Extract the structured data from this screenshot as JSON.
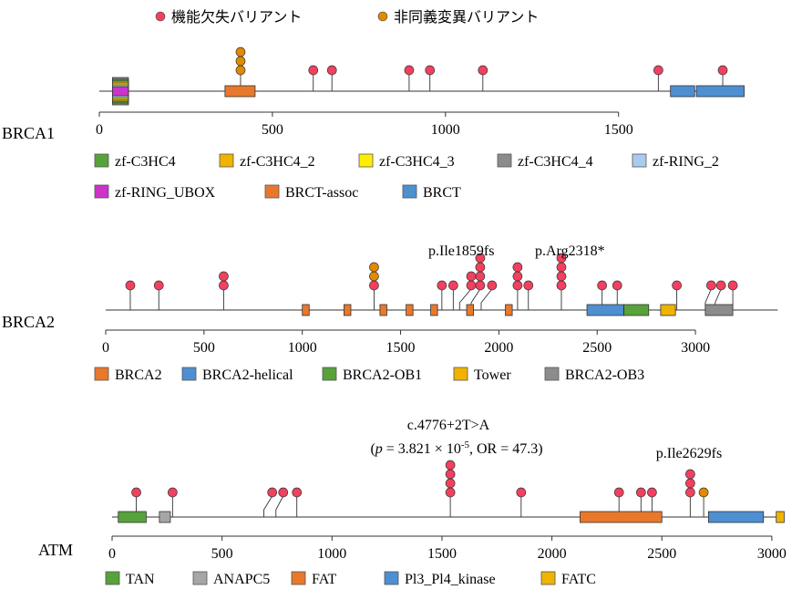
{
  "legend_top": {
    "lof": {
      "label": "機能欠失バリアント",
      "color": "#f2405f"
    },
    "missense": {
      "label": "非同義変異バリアント",
      "color": "#e08a00"
    }
  },
  "genes": [
    {
      "id": "brca1",
      "name": "BRCA1",
      "length": 1863,
      "axis_max": 1500,
      "ticks": [
        0,
        500,
        1000,
        1500
      ],
      "domains": [
        {
          "name": "zf-C3HC4_4",
          "start": 38,
          "end": 84,
          "color": "#8c8c8c"
        },
        {
          "name": "zf-C3HC4",
          "start": 38,
          "end": 84,
          "color": "#58a23c"
        },
        {
          "name": "zf-C3HC4_2",
          "start": 38,
          "end": 84,
          "color": "#f0b400"
        },
        {
          "name": "zf-C3HC4_3",
          "start": 38,
          "end": 84,
          "color": "#ffee00"
        },
        {
          "name": "zf-RING_2",
          "start": 38,
          "end": 84,
          "color": "#a9cbee"
        },
        {
          "name": "zf-RING_UBOX",
          "start": 38,
          "end": 84,
          "color": "#cc33cc"
        },
        {
          "name": "BRCT-assoc",
          "start": 363,
          "end": 450,
          "color": "#e8782c"
        },
        {
          "name": "BRCT",
          "start": 1650,
          "end": 1720,
          "color": "#4d8fd1"
        },
        {
          "name": "BRCT",
          "start": 1725,
          "end": 1863,
          "color": "#4d8fd1"
        }
      ],
      "variants": [
        {
          "pos": 408,
          "count": 3,
          "type": "missense"
        },
        {
          "pos": 618,
          "count": 1,
          "type": "lof"
        },
        {
          "pos": 672,
          "count": 1,
          "type": "lof"
        },
        {
          "pos": 895,
          "count": 1,
          "type": "lof"
        },
        {
          "pos": 955,
          "count": 1,
          "type": "lof"
        },
        {
          "pos": 1108,
          "count": 1,
          "type": "lof"
        },
        {
          "pos": 1615,
          "count": 1,
          "type": "lof"
        },
        {
          "pos": 1801,
          "count": 1,
          "type": "lof"
        }
      ],
      "legend": [
        {
          "name": "zf-C3HC4",
          "color": "#58a23c"
        },
        {
          "name": "zf-C3HC4_2",
          "color": "#f0b400"
        },
        {
          "name": "zf-C3HC4_3",
          "color": "#ffee00"
        },
        {
          "name": "zf-C3HC4_4",
          "color": "#8c8c8c"
        },
        {
          "name": "zf-RING_2",
          "color": "#a9cbee"
        },
        {
          "name": "zf-RING_UBOX",
          "color": "#cc33cc"
        },
        {
          "name": "BRCT-assoc",
          "color": "#e8782c"
        },
        {
          "name": "BRCT",
          "color": "#4d8fd1"
        }
      ],
      "annotations": []
    },
    {
      "id": "brca2",
      "name": "BRCA2",
      "length": 3418,
      "axis_max": 3000,
      "ticks": [
        0,
        500,
        1000,
        1500,
        2000,
        2500,
        3000
      ],
      "domains": [
        {
          "name": "BRCA2",
          "start": 1000,
          "end": 1035,
          "color": "#e8782c"
        },
        {
          "name": "BRCA2",
          "start": 1212,
          "end": 1247,
          "color": "#e8782c"
        },
        {
          "name": "BRCA2",
          "start": 1395,
          "end": 1430,
          "color": "#e8782c"
        },
        {
          "name": "BRCA2",
          "start": 1528,
          "end": 1563,
          "color": "#e8782c"
        },
        {
          "name": "BRCA2",
          "start": 1653,
          "end": 1688,
          "color": "#e8782c"
        },
        {
          "name": "BRCA2",
          "start": 1836,
          "end": 1871,
          "color": "#e8782c"
        },
        {
          "name": "BRCA2",
          "start": 2033,
          "end": 2068,
          "color": "#e8782c"
        },
        {
          "name": "BRCA2-helical",
          "start": 2448,
          "end": 2635,
          "color": "#4d8fd1"
        },
        {
          "name": "BRCA2-OB1",
          "start": 2636,
          "end": 2762,
          "color": "#58a23c"
        },
        {
          "name": "Tower",
          "start": 2823,
          "end": 2898,
          "color": "#f0b400"
        },
        {
          "name": "BRCA2-OB3",
          "start": 3050,
          "end": 3190,
          "color": "#8c8c8c"
        }
      ],
      "variants": [
        {
          "pos": 125,
          "count": 1,
          "type": "lof"
        },
        {
          "pos": 270,
          "count": 1,
          "type": "lof"
        },
        {
          "pos": 600,
          "count": 2,
          "type": "lof"
        },
        {
          "pos": 1365,
          "count": 2,
          "type": "missense",
          "stemTopCount": 1
        },
        {
          "pos": 1365,
          "count": 1,
          "type": "lof",
          "stack": 0
        },
        {
          "pos": 1710,
          "count": 1,
          "type": "lof"
        },
        {
          "pos": 1768,
          "count": 1,
          "type": "lof"
        },
        {
          "pos": 1859,
          "count": 2,
          "type": "lof",
          "bentFrom": 1800
        },
        {
          "pos": 1905,
          "count": 4,
          "type": "lof",
          "bentFrom": 1859
        },
        {
          "pos": 1965,
          "count": 1,
          "type": "lof",
          "bentFrom": 1910
        },
        {
          "pos": 2095,
          "count": 3,
          "type": "lof"
        },
        {
          "pos": 2150,
          "count": 1,
          "type": "lof"
        },
        {
          "pos": 2318,
          "count": 4,
          "type": "lof"
        },
        {
          "pos": 2525,
          "count": 1,
          "type": "lof"
        },
        {
          "pos": 2602,
          "count": 1,
          "type": "lof"
        },
        {
          "pos": 2905,
          "count": 1,
          "type": "lof"
        },
        {
          "pos": 3080,
          "count": 1,
          "type": "lof",
          "bentFrom": 3050
        },
        {
          "pos": 3130,
          "count": 1,
          "type": "lof",
          "bentFrom": 3100
        },
        {
          "pos": 3190,
          "count": 1,
          "type": "lof"
        }
      ],
      "legend": [
        {
          "name": "BRCA2",
          "color": "#e8782c"
        },
        {
          "name": "BRCA2-helical",
          "color": "#4d8fd1"
        },
        {
          "name": "BRCA2-OB1",
          "color": "#58a23c"
        },
        {
          "name": "Tower",
          "color": "#f0b400"
        },
        {
          "name": "BRCA2-OB3",
          "color": "#8c8c8c"
        }
      ],
      "annotations": [
        {
          "text": "p.Ile1859fs",
          "pos": 1859
        },
        {
          "text": "p.Arg2318*",
          "pos": 2318
        }
      ]
    },
    {
      "id": "atm",
      "name": "ATM",
      "length": 3056,
      "axis_max": 3000,
      "ticks": [
        0,
        500,
        1000,
        1500,
        2000,
        2500,
        3000
      ],
      "domains": [
        {
          "name": "TAN",
          "start": 28,
          "end": 155,
          "color": "#58a23c"
        },
        {
          "name": "ANAPC5",
          "start": 215,
          "end": 265,
          "color": "#a6a6a6"
        },
        {
          "name": "FAT",
          "start": 2128,
          "end": 2500,
          "color": "#e8782c"
        },
        {
          "name": "PI3_PI4_kinase",
          "start": 2712,
          "end": 2962,
          "color": "#4d8fd1"
        },
        {
          "name": "FATC",
          "start": 3020,
          "end": 3056,
          "color": "#f0b400"
        }
      ],
      "variants": [
        {
          "pos": 110,
          "count": 1,
          "type": "lof"
        },
        {
          "pos": 275,
          "count": 1,
          "type": "lof"
        },
        {
          "pos": 728,
          "count": 1,
          "type": "lof",
          "bentFrom": 690
        },
        {
          "pos": 778,
          "count": 1,
          "type": "lof",
          "bentFrom": 745
        },
        {
          "pos": 840,
          "count": 1,
          "type": "lof"
        },
        {
          "pos": 1538,
          "count": 4,
          "type": "lof"
        },
        {
          "pos": 1860,
          "count": 1,
          "type": "lof"
        },
        {
          "pos": 2305,
          "count": 1,
          "type": "lof"
        },
        {
          "pos": 2405,
          "count": 1,
          "type": "lof"
        },
        {
          "pos": 2455,
          "count": 1,
          "type": "lof"
        },
        {
          "pos": 2629,
          "count": 3,
          "type": "lof"
        },
        {
          "pos": 2690,
          "count": 1,
          "type": "missense"
        }
      ],
      "legend": [
        {
          "name": "TAN",
          "color": "#58a23c"
        },
        {
          "name": "ANAPC5",
          "color": "#a6a6a6"
        },
        {
          "name": "FAT",
          "color": "#e8782c"
        },
        {
          "name": "Pl3_Pl4_kinase",
          "color": "#4d8fd1"
        },
        {
          "name": "FATC",
          "color": "#f0b400"
        }
      ],
      "annotations": [
        {
          "text": "c.4776+2T>A",
          "pos": 1538
        },
        {
          "text": "(p = 3.821 × 10-5, OR = 47.3)",
          "pos": 1538,
          "italic_p": true
        },
        {
          "text": "p.Ile2629fs",
          "pos": 2629
        }
      ]
    }
  ]
}
